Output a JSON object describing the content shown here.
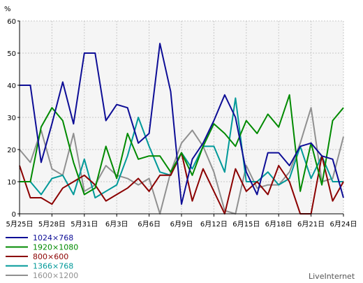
{
  "chart_data": {
    "type": "line",
    "ylabel": "%",
    "ylim": [
      0,
      60
    ],
    "yticks": [
      0,
      10,
      20,
      30,
      40,
      50,
      60
    ],
    "grid": true,
    "legend_position": "bottom-left",
    "x_labels": [
      {
        "index": 0,
        "label": "5月25日"
      },
      {
        "index": 3,
        "label": "5月28日"
      },
      {
        "index": 6,
        "label": "5月31日"
      },
      {
        "index": 9,
        "label": "6月3日"
      },
      {
        "index": 12,
        "label": "6月6日"
      },
      {
        "index": 15,
        "label": "6月9日"
      },
      {
        "index": 18,
        "label": "6月12日"
      },
      {
        "index": 21,
        "label": "6月15日"
      },
      {
        "index": 24,
        "label": "6月18日"
      },
      {
        "index": 27,
        "label": "6月21日"
      },
      {
        "index": 30,
        "label": "6月24日"
      }
    ],
    "series": [
      {
        "name": "1024×768",
        "color": "#0d0d96",
        "values": [
          40,
          40,
          16,
          28,
          41,
          28,
          50,
          50,
          29,
          34,
          33,
          22,
          25,
          53,
          38,
          3,
          17,
          22,
          29,
          37,
          30,
          13,
          6,
          19,
          19,
          15,
          21,
          22,
          18,
          17,
          5
        ]
      },
      {
        "name": "1920×1080",
        "color": "#008a00",
        "values": [
          10,
          10,
          27,
          33,
          29,
          16,
          6,
          8,
          21,
          11,
          25,
          17,
          18,
          18,
          13,
          19,
          12,
          21,
          28,
          25,
          21,
          29,
          25,
          31,
          27,
          37,
          7,
          22,
          9,
          29,
          33
        ]
      },
      {
        "name": "800×600",
        "color": "#8b0000",
        "values": [
          15,
          5,
          5,
          3,
          8,
          10,
          12,
          9,
          4,
          6,
          8,
          11,
          7,
          12,
          12,
          19,
          4,
          14,
          7,
          0,
          14,
          7,
          10,
          6,
          15,
          10,
          0,
          0,
          18,
          4,
          10
        ]
      },
      {
        "name": "1366×768",
        "color": "#009999",
        "values": [
          10,
          10,
          6,
          11,
          12,
          6,
          17,
          5,
          7,
          9,
          18,
          30,
          21,
          13,
          12,
          19,
          14,
          21,
          21,
          13,
          36,
          10,
          10,
          13,
          9,
          11,
          21,
          11,
          18,
          10,
          10
        ]
      },
      {
        "name": "1600×1200",
        "color": "#909090",
        "values": [
          20,
          16,
          26,
          14,
          12,
          25,
          7,
          9,
          15,
          12,
          11,
          9,
          11,
          0,
          13,
          22,
          26,
          21,
          13,
          1,
          0,
          15,
          8,
          9,
          9,
          13,
          22,
          33,
          10,
          11,
          24
        ]
      }
    ]
  },
  "watermark": "LiveInternet"
}
